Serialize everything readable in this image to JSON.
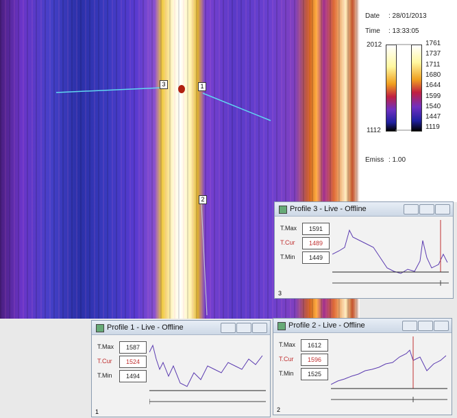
{
  "header": {
    "date_label": "Date",
    "date": ": 28/01/2013",
    "time_label": "Time",
    "time": ": 13:33:05"
  },
  "palette": {
    "left_max": 2012,
    "left_min": 1112,
    "right_ticks": [
      1761,
      1737,
      1711,
      1680,
      1644,
      1599,
      1540,
      1447,
      1119
    ],
    "emiss_label": "Emiss",
    "emiss": ": 1.00"
  },
  "markers": [
    "3",
    "1",
    "2"
  ],
  "profiles": [
    {
      "title": "Profile 3 - Live - Offline",
      "labels": [
        "T.Max",
        "T.Cur",
        "T.Min"
      ],
      "values": [
        1591,
        1489,
        1449
      ],
      "footer": "3"
    },
    {
      "title": "Profile 1 - Live - Offline",
      "labels": [
        "T.Max",
        "T.Cur",
        "T.Min"
      ],
      "values": [
        1587,
        1524,
        1494
      ],
      "footer": "1"
    },
    {
      "title": "Profile 2 - Live - Offline",
      "labels": [
        "T.Max",
        "T.Cur",
        "T.Min"
      ],
      "values": [
        1612,
        1596,
        1525
      ],
      "footer": "2"
    }
  ]
}
